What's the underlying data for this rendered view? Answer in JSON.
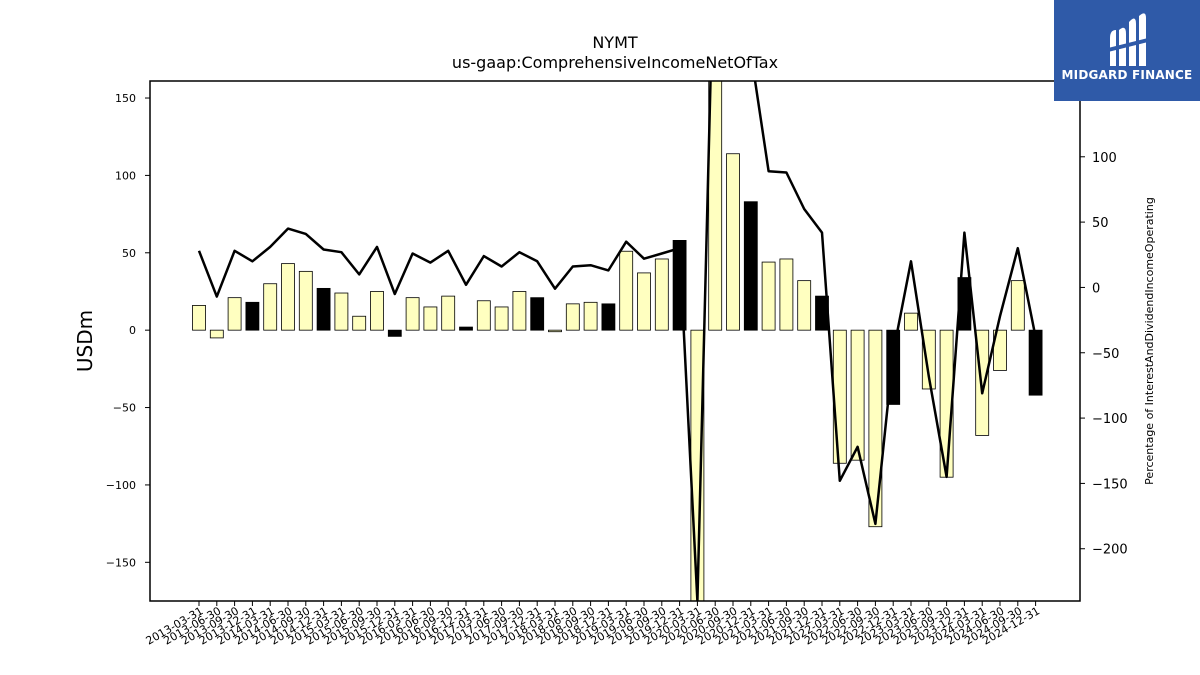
{
  "chart_data": {
    "type": "bar",
    "title": "NYMT",
    "subtitle": "us-gaap:ComprehensiveIncomeNetOfTax",
    "ylabel": "USDm",
    "y2label": "Percentage of InterestAndDividendIncomeOperating",
    "ylim": [
      -175,
      161
    ],
    "y2lim": [
      -240,
      158
    ],
    "yticks": [
      -150,
      -100,
      -50,
      0,
      50,
      100,
      150
    ],
    "y2ticks": [
      -200,
      -150,
      -100,
      -50,
      0,
      50,
      100
    ],
    "categories": [
      "2013-03-31",
      "2013-06-30",
      "2013-09-30",
      "2013-12-31",
      "2014-03-31",
      "2014-06-30",
      "2014-09-30",
      "2014-12-31",
      "2015-03-31",
      "2015-06-30",
      "2015-09-30",
      "2015-12-31",
      "2016-03-31",
      "2016-06-30",
      "2016-09-30",
      "2016-12-31",
      "2017-03-31",
      "2017-06-30",
      "2017-09-30",
      "2017-12-31",
      "2018-03-31",
      "2018-06-30",
      "2018-09-30",
      "2018-12-31",
      "2019-03-31",
      "2019-06-30",
      "2019-09-30",
      "2019-12-31",
      "2020-03-31",
      "2020-06-30",
      "2020-09-30",
      "2020-12-31",
      "2021-03-31",
      "2021-06-30",
      "2021-09-30",
      "2021-12-31",
      "2022-03-31",
      "2022-06-30",
      "2022-09-30",
      "2022-12-31",
      "2023-03-31",
      "2023-06-30",
      "2023-09-30",
      "2023-12-31",
      "2024-03-31",
      "2024-06-30",
      "2024-09-30",
      "2024-12-31"
    ],
    "series": [
      {
        "type": "bar",
        "values": [
          16,
          -5,
          21,
          18,
          30,
          43,
          38,
          27,
          24,
          9,
          25,
          -4,
          21,
          15,
          22,
          2,
          19,
          15,
          25,
          21,
          -1,
          17,
          18,
          17,
          51,
          37,
          46,
          58,
          -180,
          170,
          114,
          83,
          44,
          46,
          32,
          22,
          -86,
          -84,
          -127,
          -48,
          11,
          -38,
          -95,
          34,
          -68,
          -26,
          32,
          -42
        ],
        "highlight": [
          false,
          false,
          false,
          true,
          false,
          false,
          false,
          true,
          false,
          false,
          false,
          true,
          false,
          false,
          false,
          true,
          false,
          false,
          false,
          true,
          false,
          false,
          false,
          true,
          false,
          false,
          false,
          true,
          false,
          false,
          false,
          true,
          false,
          false,
          false,
          true,
          false,
          false,
          false,
          true,
          false,
          false,
          false,
          true,
          false,
          false,
          false,
          true
        ],
        "color": "#ffffc0",
        "highlight_color": "#000000"
      },
      {
        "type": "line",
        "axis": "right",
        "values": [
          28,
          -7,
          28,
          20,
          31,
          45,
          41,
          29,
          27,
          10,
          31,
          -5,
          26,
          19,
          28,
          2,
          24,
          16,
          27,
          20,
          -1,
          16,
          17,
          13,
          35,
          22,
          26,
          30,
          -240,
          300,
          270,
          180,
          89,
          88,
          60,
          42,
          -148,
          -122,
          -181,
          -50,
          20,
          -68,
          -145,
          42,
          -81,
          -22,
          30,
          -38
        ],
        "color": "#000000"
      }
    ],
    "grid": false,
    "legend": "none"
  },
  "brand": {
    "name": "MIDGARD FINANCE",
    "bg_color": "#2f5aa8"
  }
}
